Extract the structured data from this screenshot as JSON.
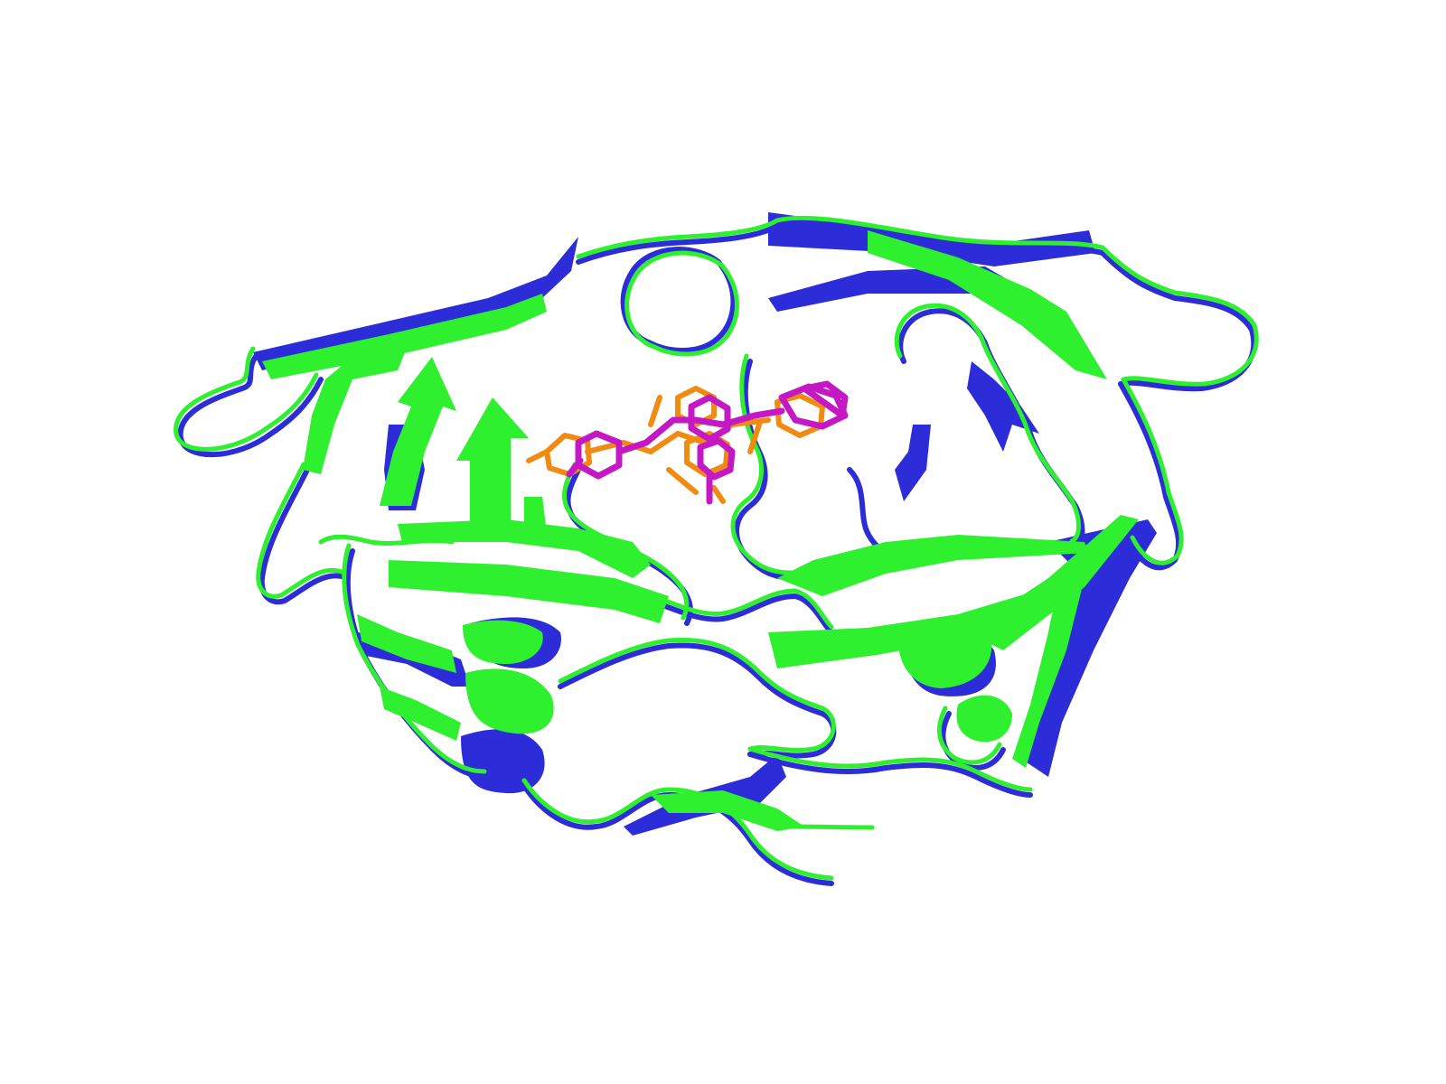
{
  "scene": {
    "description_visible_text": [],
    "background_color": "#ffffff",
    "colors": {
      "structure_a": "#2c2cd8",
      "structure_b": "#2ef02e",
      "ligand_a": "#c418c4",
      "ligand_b": "#f08a10"
    },
    "elements": [
      {
        "name": "protein-structure-blue",
        "color_key": "structure_a"
      },
      {
        "name": "protein-structure-green",
        "color_key": "structure_b"
      },
      {
        "name": "ligand-magenta",
        "color_key": "ligand_a"
      },
      {
        "name": "ligand-orange",
        "color_key": "ligand_b"
      }
    ]
  }
}
